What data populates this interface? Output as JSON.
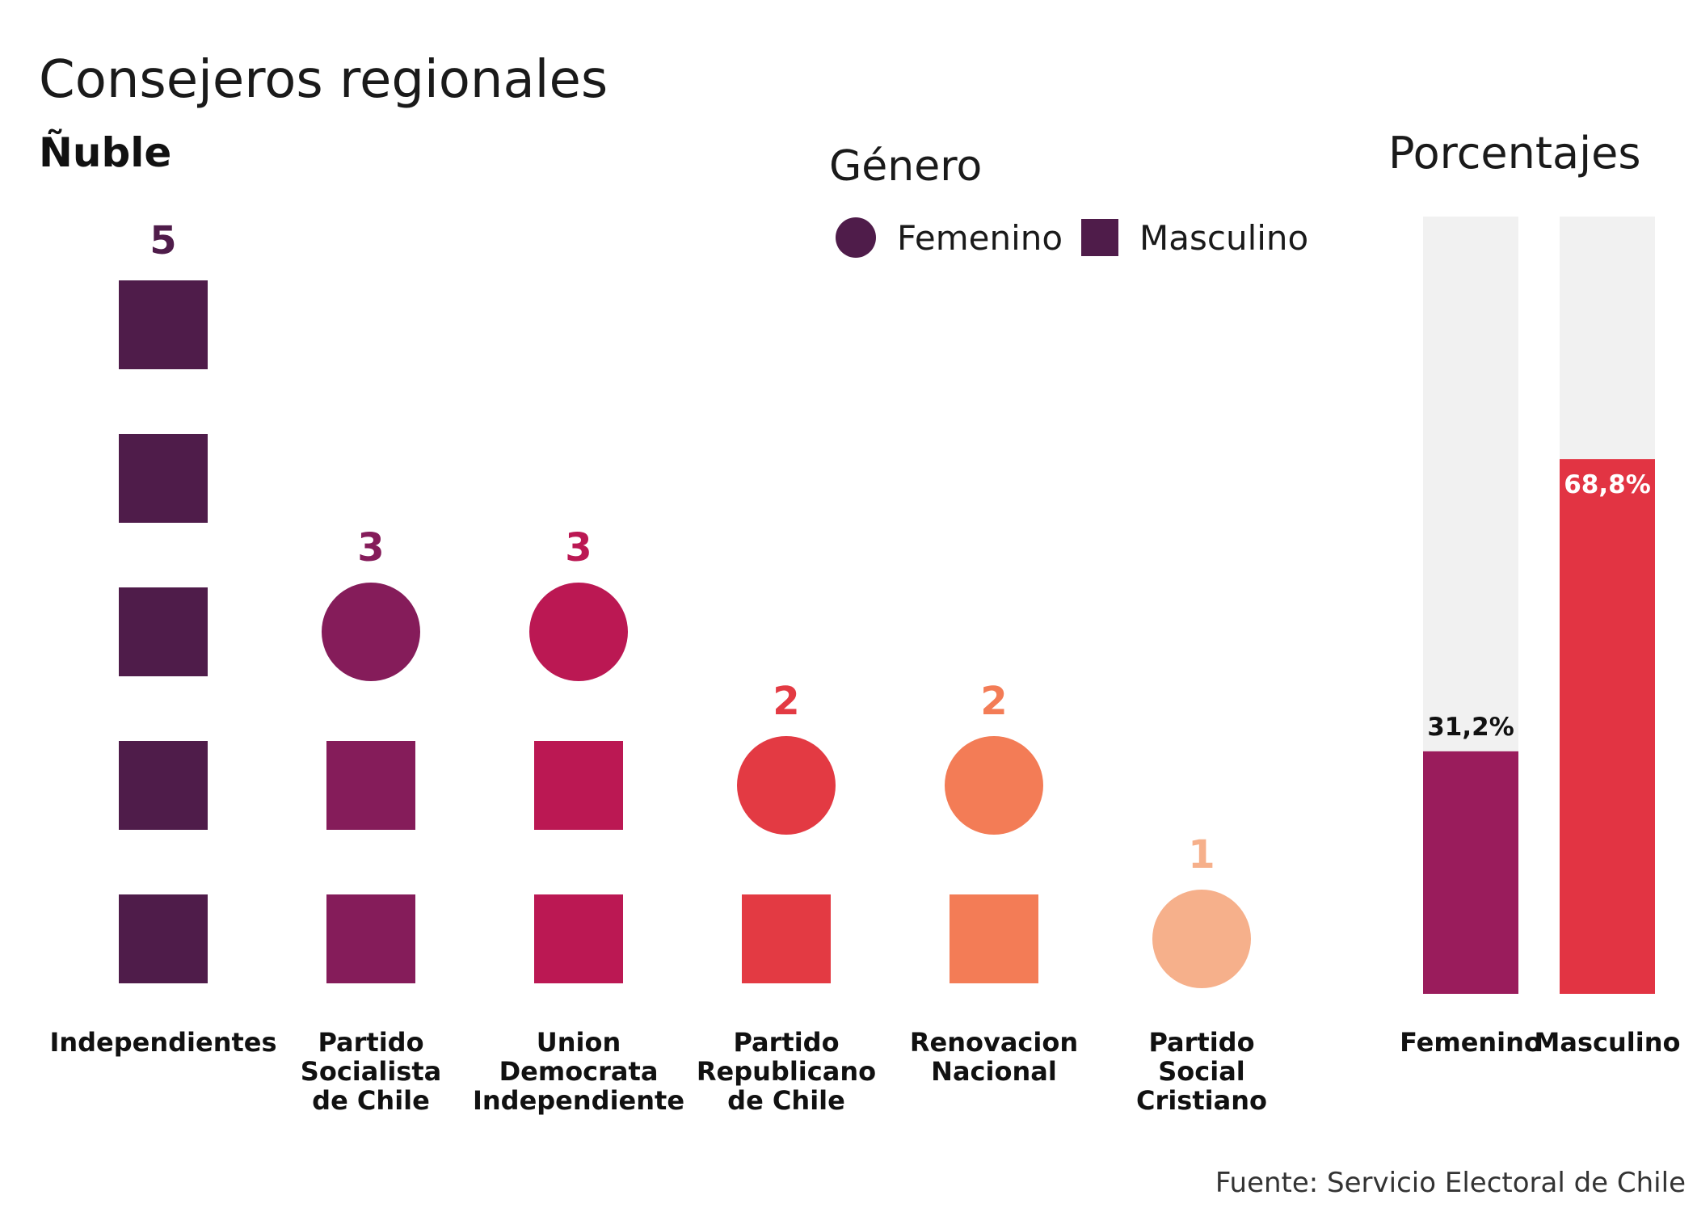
{
  "title": "Consejeros regionales",
  "subtitle": "Ñuble",
  "source": "Fuente: Servicio Electoral de Chile",
  "legend": {
    "title": "Género",
    "items": [
      {
        "label": "Femenino",
        "shape": "circle",
        "color": "#4f1c4a"
      },
      {
        "label": "Masculino",
        "shape": "square",
        "color": "#4f1c4a"
      }
    ]
  },
  "chart_data": [
    {
      "type": "pictogram",
      "categories": [
        {
          "name": "Independientes",
          "label_lines": [
            "Independientes"
          ],
          "total": 5,
          "femenino": 0,
          "masculino": 5,
          "color": "#4f1c4a"
        },
        {
          "name": "Partido Socialista de Chile",
          "label_lines": [
            "Partido",
            "Socialista",
            "de Chile"
          ],
          "total": 3,
          "femenino": 1,
          "masculino": 2,
          "color": "#851c5a"
        },
        {
          "name": "Union Democrata Independiente",
          "label_lines": [
            "Union",
            "Democrata",
            "Independiente"
          ],
          "total": 3,
          "femenino": 1,
          "masculino": 2,
          "color": "#bb1853"
        },
        {
          "name": "Partido Republicano de Chile",
          "label_lines": [
            "Partido",
            "Republicano",
            "de Chile"
          ],
          "total": 2,
          "femenino": 1,
          "masculino": 1,
          "color": "#e33a43"
        },
        {
          "name": "Renovacion Nacional",
          "label_lines": [
            "Renovacion",
            "Nacional"
          ],
          "total": 2,
          "femenino": 1,
          "masculino": 1,
          "color": "#f37c56"
        },
        {
          "name": "Partido Social Cristiano",
          "label_lines": [
            "Partido",
            "Social",
            "Cristiano"
          ],
          "total": 1,
          "femenino": 1,
          "masculino": 0,
          "color": "#f6b08b"
        }
      ]
    },
    {
      "type": "bar",
      "title": "Porcentajes",
      "categories": [
        "Femenino",
        "Masculino"
      ],
      "values": [
        31.2,
        68.8
      ],
      "value_labels": [
        "31,2%",
        "68,8%"
      ],
      "colors": [
        "#9a1c5c",
        "#e23443"
      ],
      "background_color": "#f1f1f1",
      "ylim": [
        0,
        100
      ]
    }
  ]
}
